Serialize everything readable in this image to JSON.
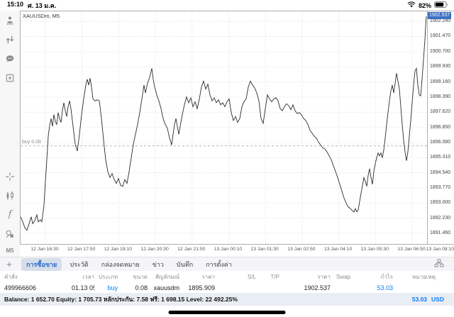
{
  "status_bar": {
    "time": "15:10",
    "date": "ศ. 13 ม.ค.",
    "battery_pct": "82%"
  },
  "sidebar": {
    "icons": [
      "account-icon",
      "trade-arrows-icon",
      "chat-icon",
      "new-order-icon",
      "crosshair-icon",
      "candlestick-icon",
      "indicator-function-icon",
      "objects-icon"
    ],
    "function_glyph": "f",
    "timeframe": "M5"
  },
  "chart": {
    "symbol_label": "XAUUSDm, M5",
    "price_tag": "1902.537",
    "buy_marker_label": "buy 0.08"
  },
  "chart_data": {
    "type": "line",
    "title": "XAUUSDm, M5",
    "price_top": 1902.75,
    "price_bottom": 1890.92,
    "current_price": 1902.537,
    "buy_line": {
      "label": "buy 0.08",
      "price": 1895.909
    },
    "y_ticks": [
      "1902.240",
      "1901.470",
      "1900.700",
      "1899.930",
      "1899.160",
      "1898.390",
      "1897.620",
      "1896.850",
      "1896.080",
      "1895.310",
      "1894.540",
      "1893.770",
      "1893.000",
      "1892.230",
      "1891.460"
    ],
    "x_labels": [
      "12 Jan 16:30",
      "12 Jan 17:50",
      "12 Jan 19:10",
      "12 Jan 20:30",
      "12 Jan 21:50",
      "13 Jan 00:10",
      "13 Jan 01:30",
      "13 Jan 02:50",
      "13 Jan 04:10",
      "13 Jan 05:30",
      "13 Jan 06:50",
      "13 Jan 08:10"
    ],
    "x_grid_start": 35,
    "x_grid_step": 51.7,
    "line_color": "#2b2b2b",
    "points": [
      [
        0,
        1892.3
      ],
      [
        3,
        1892.05
      ],
      [
        6,
        1891.75
      ],
      [
        9,
        1891.62
      ],
      [
        12,
        1891.95
      ],
      [
        15,
        1892.3
      ],
      [
        17,
        1891.95
      ],
      [
        20,
        1892.1
      ],
      [
        23,
        1892.4
      ],
      [
        25,
        1892.05
      ],
      [
        28,
        1892.15
      ],
      [
        30,
        1892.05
      ],
      [
        33,
        1892.9
      ],
      [
        35,
        1894.1
      ],
      [
        37,
        1895.2
      ],
      [
        39,
        1896.4
      ],
      [
        41,
        1896.95
      ],
      [
        43,
        1897.3
      ],
      [
        45,
        1896.9
      ],
      [
        47,
        1897.5
      ],
      [
        49,
        1897.15
      ],
      [
        51,
        1897.0
      ],
      [
        53,
        1897.6
      ],
      [
        55,
        1897.3
      ],
      [
        57,
        1897.1
      ],
      [
        59,
        1897.7
      ],
      [
        61,
        1898.1
      ],
      [
        63,
        1897.7
      ],
      [
        65,
        1897.4
      ],
      [
        67,
        1897.9
      ],
      [
        69,
        1898.2
      ],
      [
        71,
        1897.8
      ],
      [
        74,
        1896.9
      ],
      [
        77,
        1896.0
      ],
      [
        80,
        1895.65
      ],
      [
        83,
        1896.5
      ],
      [
        86,
        1897.5
      ],
      [
        89,
        1898.3
      ],
      [
        92,
        1899.0
      ],
      [
        94,
        1899.3
      ],
      [
        96,
        1899.0
      ],
      [
        98,
        1899.35
      ],
      [
        100,
        1898.9
      ],
      [
        102,
        1898.3
      ],
      [
        105,
        1898.2
      ],
      [
        108,
        1898.25
      ],
      [
        111,
        1898.2
      ],
      [
        114,
        1897.3
      ],
      [
        117,
        1896.2
      ],
      [
        120,
        1895.2
      ],
      [
        123,
        1894.6
      ],
      [
        126,
        1894.3
      ],
      [
        129,
        1894.5
      ],
      [
        132,
        1894.2
      ],
      [
        135,
        1894.0
      ],
      [
        138,
        1894.25
      ],
      [
        141,
        1893.9
      ],
      [
        144,
        1893.85
      ],
      [
        147,
        1894.2
      ],
      [
        150,
        1894.0
      ],
      [
        153,
        1894.6
      ],
      [
        156,
        1895.3
      ],
      [
        159,
        1896.0
      ],
      [
        162,
        1896.5
      ],
      [
        165,
        1897.0
      ],
      [
        168,
        1897.6
      ],
      [
        171,
        1898.3
      ],
      [
        174,
        1899.0
      ],
      [
        176,
        1898.6
      ],
      [
        179,
        1899.1
      ],
      [
        182,
        1899.4
      ],
      [
        185,
        1899.85
      ],
      [
        187,
        1899.3
      ],
      [
        189,
        1898.9
      ],
      [
        192,
        1898.5
      ],
      [
        195,
        1898.2
      ],
      [
        198,
        1897.8
      ],
      [
        201,
        1897.3
      ],
      [
        204,
        1897.0
      ],
      [
        207,
        1896.8
      ],
      [
        210,
        1896.3
      ],
      [
        213,
        1895.95
      ],
      [
        215,
        1896.5
      ],
      [
        217,
        1897.0
      ],
      [
        219,
        1897.3
      ],
      [
        221,
        1896.9
      ],
      [
        223,
        1896.5
      ],
      [
        225,
        1896.9
      ],
      [
        228,
        1897.5
      ],
      [
        231,
        1898.0
      ],
      [
        234,
        1898.4
      ],
      [
        237,
        1898.1
      ],
      [
        240,
        1898.35
      ],
      [
        243,
        1897.9
      ],
      [
        246,
        1898.15
      ],
      [
        249,
        1897.8
      ],
      [
        252,
        1898.3
      ],
      [
        255,
        1898.9
      ],
      [
        258,
        1899.2
      ],
      [
        261,
        1898.8
      ],
      [
        264,
        1899.05
      ],
      [
        267,
        1898.5
      ],
      [
        270,
        1898.2
      ],
      [
        273,
        1898.35
      ],
      [
        276,
        1898.1
      ],
      [
        279,
        1898.25
      ],
      [
        282,
        1898.0
      ],
      [
        285,
        1898.1
      ],
      [
        288,
        1897.9
      ],
      [
        291,
        1898.15
      ],
      [
        294,
        1898.3
      ],
      [
        297,
        1897.6
      ],
      [
        300,
        1897.2
      ],
      [
        303,
        1897.4
      ],
      [
        306,
        1897.1
      ],
      [
        309,
        1897.3
      ],
      [
        312,
        1897.9
      ],
      [
        315,
        1898.15
      ],
      [
        318,
        1898.3
      ],
      [
        321,
        1898.9
      ],
      [
        324,
        1899.2
      ],
      [
        327,
        1899.0
      ],
      [
        330,
        1898.85
      ],
      [
        333,
        1898.6
      ],
      [
        336,
        1898.2
      ],
      [
        339,
        1897.3
      ],
      [
        342,
        1897.05
      ],
      [
        345,
        1897.8
      ],
      [
        348,
        1898.5
      ],
      [
        351,
        1898.3
      ],
      [
        354,
        1898.15
      ],
      [
        357,
        1898.3
      ],
      [
        360,
        1898.35
      ],
      [
        363,
        1898.2
      ],
      [
        366,
        1897.8
      ],
      [
        369,
        1897.7
      ],
      [
        372,
        1897.9
      ],
      [
        375,
        1898.05
      ],
      [
        378,
        1897.95
      ],
      [
        381,
        1897.75
      ],
      [
        384,
        1898.0
      ],
      [
        387,
        1897.7
      ],
      [
        390,
        1897.55
      ],
      [
        393,
        1897.6
      ],
      [
        396,
        1897.5
      ],
      [
        399,
        1897.3
      ],
      [
        402,
        1897.2
      ],
      [
        405,
        1897.0
      ],
      [
        408,
        1896.7
      ],
      [
        411,
        1896.55
      ],
      [
        414,
        1896.4
      ],
      [
        417,
        1896.3
      ],
      [
        420,
        1896.1
      ],
      [
        423,
        1895.95
      ],
      [
        426,
        1895.8
      ],
      [
        429,
        1895.75
      ],
      [
        432,
        1895.6
      ],
      [
        435,
        1895.4
      ],
      [
        438,
        1895.2
      ],
      [
        441,
        1894.9
      ],
      [
        444,
        1894.6
      ],
      [
        447,
        1894.3
      ],
      [
        450,
        1893.95
      ],
      [
        453,
        1893.6
      ],
      [
        456,
        1893.25
      ],
      [
        459,
        1893.0
      ],
      [
        462,
        1892.8
      ],
      [
        465,
        1892.72
      ],
      [
        468,
        1892.6
      ],
      [
        470,
        1892.55
      ],
      [
        472,
        1892.72
      ],
      [
        474,
        1892.55
      ],
      [
        476,
        1892.65
      ],
      [
        479,
        1893.3
      ],
      [
        482,
        1893.9
      ],
      [
        484,
        1894.3
      ],
      [
        486,
        1894.1
      ],
      [
        488,
        1893.85
      ],
      [
        490,
        1894.4
      ],
      [
        492,
        1894.75
      ],
      [
        494,
        1894.3
      ],
      [
        496,
        1893.95
      ],
      [
        498,
        1894.6
      ],
      [
        500,
        1895.0
      ],
      [
        502,
        1895.3
      ],
      [
        504,
        1895.55
      ],
      [
        506,
        1895.4
      ],
      [
        508,
        1895.55
      ],
      [
        510,
        1895.3
      ],
      [
        512,
        1895.7
      ],
      [
        514,
        1896.3
      ],
      [
        516,
        1897.0
      ],
      [
        518,
        1897.6
      ],
      [
        520,
        1898.2
      ],
      [
        522,
        1898.7
      ],
      [
        524,
        1899.0
      ],
      [
        526,
        1898.6
      ],
      [
        528,
        1899.1
      ],
      [
        530,
        1899.6
      ],
      [
        532,
        1899.2
      ],
      [
        534,
        1898.8
      ],
      [
        536,
        1897.9
      ],
      [
        538,
        1897.0
      ],
      [
        540,
        1896.2
      ],
      [
        542,
        1895.6
      ],
      [
        544,
        1895.15
      ],
      [
        546,
        1895.6
      ],
      [
        548,
        1896.4
      ],
      [
        550,
        1897.2
      ],
      [
        552,
        1898.1
      ],
      [
        554,
        1899.0
      ],
      [
        556,
        1899.7
      ],
      [
        558,
        1899.85
      ],
      [
        560,
        1899.0
      ],
      [
        562,
        1898.5
      ],
      [
        564,
        1898.45
      ],
      [
        566,
        1899.3
      ],
      [
        568,
        1900.3
      ],
      [
        570,
        1901.3
      ],
      [
        571,
        1902.0
      ],
      [
        572,
        1902.5
      ]
    ]
  },
  "tabbar": {
    "add_label": "+",
    "tabs": [
      "การซื้อขาย",
      "ประวัติ",
      "กล่องจดหมาย",
      "ข่าว",
      "บันทึก",
      "การตั้งค่า"
    ],
    "selected_index": 0
  },
  "table": {
    "headers": [
      "คำสั่ง",
      "เวลา",
      "ประเภท",
      "ขนาด",
      "สัญลักษณ์",
      "ราคา",
      "S/L",
      "T/P",
      "ราคา",
      "Swap",
      "กำไร",
      "หมายเหตุ"
    ],
    "row": [
      "499966606",
      "01.13 05:09",
      "buy",
      "0.08",
      "xauusdm",
      "1895.909",
      "",
      "",
      "1902.537",
      "",
      "53.03",
      ""
    ],
    "blue_columns": [
      2,
      10
    ]
  },
  "account_bar": {
    "summary": "Balance: 1 652.70 Equity: 1 705.73 หลักประกัน: 7.58 ฟรี: 1 698.15 Level: 22 492.25%",
    "profit": "53.03",
    "currency": "USD"
  }
}
